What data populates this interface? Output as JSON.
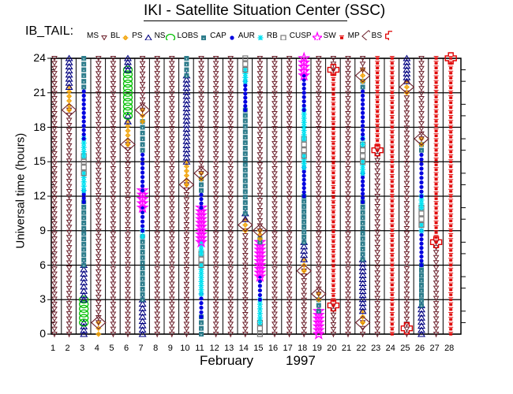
{
  "chart_data": {
    "type": "scatter",
    "title": "IKI - Satellite Situation Center (SSC)",
    "legend_title": "IB_TAIL:",
    "xlabel_month": "February",
    "xlabel_year": "1997",
    "ylabel": "Universal time (hours)",
    "xlim": [
      1,
      28
    ],
    "ylim": [
      0,
      24
    ],
    "grid": true,
    "yticks": [
      "0",
      "3",
      "6",
      "9",
      "12",
      "15",
      "18",
      "21",
      "24"
    ],
    "xticks": [
      "1",
      "2",
      "3",
      "4",
      "5",
      "6",
      "7",
      "8",
      "9",
      "10",
      "11",
      "12",
      "13",
      "14",
      "15",
      "16",
      "17",
      "18",
      "19",
      "20",
      "21",
      "22",
      "23",
      "24",
      "25",
      "26",
      "27",
      "28"
    ],
    "legend": [
      {
        "code": "MS",
        "symbol": "triangle-down",
        "color": "#6b1f2a"
      },
      {
        "code": "BL",
        "symbol": "sun",
        "color": "#f2a100"
      },
      {
        "code": "PS",
        "symbol": "triangle-up",
        "color": "#000080"
      },
      {
        "code": "NS",
        "symbol": "circle-open",
        "color": "#00c000"
      },
      {
        "code": "LOBS",
        "symbol": "square-filled",
        "color": "#2e7d8c"
      },
      {
        "code": "CAP",
        "symbol": "dot",
        "color": "#0000e0"
      },
      {
        "code": "AUR",
        "symbol": "asterisk",
        "color": "#00e0f0"
      },
      {
        "code": "RB",
        "symbol": "square-open",
        "color": "#777777"
      },
      {
        "code": "CUSP",
        "symbol": "star-open",
        "color": "#ff00ff"
      },
      {
        "code": "SW",
        "symbol": "burst",
        "color": "#e00000"
      },
      {
        "code": "MP",
        "symbol": "diamond-open",
        "color": "#6b1f2a"
      },
      {
        "code": "BS",
        "symbol": "cross-open",
        "color": "#e00000"
      }
    ],
    "days": [
      {
        "day": 1,
        "segments": [
          [
            "MS",
            0,
            24
          ]
        ],
        "markers": []
      },
      {
        "day": 2,
        "segments": [
          [
            "MS",
            0,
            19.5
          ],
          [
            "BL",
            19.5,
            21.5
          ],
          [
            "PS",
            21.5,
            24
          ]
        ],
        "markers": [
          [
            "MP",
            19.5
          ]
        ]
      },
      {
        "day": 3,
        "segments": [
          [
            "PS",
            0,
            1
          ],
          [
            "NS",
            1,
            3
          ],
          [
            "PS",
            3,
            6
          ],
          [
            "LOBS",
            6,
            11.5
          ],
          [
            "CAP",
            11.5,
            12.5
          ],
          [
            "AUR",
            12.5,
            14
          ],
          [
            "RB",
            14,
            15.5
          ],
          [
            "AUR",
            15.5,
            17
          ],
          [
            "CAP",
            17,
            21.5
          ],
          [
            "LOBS",
            21.5,
            24
          ]
        ],
        "markers": []
      },
      {
        "day": 4,
        "segments": [
          [
            "BL",
            0,
            1
          ],
          [
            "MS",
            1,
            24
          ]
        ],
        "markers": [
          [
            "MP",
            1
          ]
        ]
      },
      {
        "day": 5,
        "segments": [
          [
            "MS",
            0,
            24
          ]
        ],
        "markers": []
      },
      {
        "day": 6,
        "segments": [
          [
            "MS",
            0,
            16.5
          ],
          [
            "BL",
            16.5,
            18.5
          ],
          [
            "PS",
            18.5,
            19
          ],
          [
            "NS",
            19,
            23
          ],
          [
            "PS",
            23,
            24
          ]
        ],
        "markers": [
          [
            "MP",
            16.5
          ]
        ]
      },
      {
        "day": 7,
        "segments": [
          [
            "PS",
            0,
            3
          ],
          [
            "LOBS",
            3,
            8.5
          ],
          [
            "AUR",
            8.5,
            9
          ],
          [
            "CAP",
            9,
            11
          ],
          [
            "CUSP",
            11,
            12.5
          ],
          [
            "CAP",
            12.5,
            16
          ],
          [
            "LOBS",
            16,
            18.5
          ],
          [
            "BL",
            18.5,
            19.5
          ],
          [
            "MS",
            19.5,
            24
          ]
        ],
        "markers": [
          [
            "MP",
            19.5
          ]
        ]
      },
      {
        "day": 8,
        "segments": [
          [
            "MS",
            0,
            24
          ]
        ],
        "markers": []
      },
      {
        "day": 9,
        "segments": [
          [
            "MS",
            0,
            24
          ]
        ],
        "markers": []
      },
      {
        "day": 10,
        "segments": [
          [
            "MS",
            0,
            13
          ],
          [
            "BL",
            13,
            15
          ],
          [
            "PS",
            15,
            22.5
          ],
          [
            "LOBS",
            22.5,
            24
          ]
        ],
        "markers": [
          [
            "MP",
            13
          ]
        ]
      },
      {
        "day": 11,
        "segments": [
          [
            "LOBS",
            0,
            1.5
          ],
          [
            "CAP",
            1.5,
            3.5
          ],
          [
            "AUR",
            3.5,
            6
          ],
          [
            "RB",
            6,
            7
          ],
          [
            "AUR",
            7,
            8
          ],
          [
            "CUSP",
            8,
            11
          ],
          [
            "CAP",
            11,
            12.5
          ],
          [
            "LOBS",
            12.5,
            13.5
          ],
          [
            "BL",
            13.5,
            14
          ],
          [
            "MS",
            14,
            24
          ]
        ],
        "markers": [
          [
            "MP",
            14
          ]
        ]
      },
      {
        "day": 12,
        "segments": [
          [
            "MS",
            0,
            24
          ]
        ],
        "markers": []
      },
      {
        "day": 13,
        "segments": [
          [
            "MS",
            0,
            24
          ]
        ],
        "markers": []
      },
      {
        "day": 14,
        "segments": [
          [
            "MS",
            0,
            9
          ],
          [
            "BL",
            9,
            10
          ],
          [
            "PS",
            10,
            10.5
          ],
          [
            "LOBS",
            10.5,
            19.5
          ],
          [
            "CAP",
            19.5,
            22
          ],
          [
            "AUR",
            22,
            23
          ],
          [
            "RB",
            23,
            24
          ]
        ],
        "markers": [
          [
            "MP",
            9.5
          ]
        ]
      },
      {
        "day": 15,
        "segments": [
          [
            "RB",
            0,
            1
          ],
          [
            "AUR",
            1,
            3
          ],
          [
            "CAP",
            3,
            5
          ],
          [
            "CUSP",
            5,
            8
          ],
          [
            "LOBS",
            8,
            8.3
          ],
          [
            "BL",
            8.3,
            9
          ],
          [
            "MS",
            9,
            24
          ]
        ],
        "markers": [
          [
            "MP",
            9
          ]
        ]
      },
      {
        "day": 16,
        "segments": [
          [
            "MS",
            0,
            24
          ]
        ],
        "markers": []
      },
      {
        "day": 17,
        "segments": [
          [
            "MS",
            0,
            24
          ]
        ],
        "markers": []
      },
      {
        "day": 18,
        "segments": [
          [
            "MS",
            0,
            5.5
          ],
          [
            "BL",
            5.5,
            6.5
          ],
          [
            "PS",
            6.5,
            8
          ],
          [
            "LOBS",
            8,
            12
          ],
          [
            "CAP",
            12,
            14.5
          ],
          [
            "AUR",
            14.5,
            15.5
          ],
          [
            "RB",
            15.5,
            17
          ],
          [
            "AUR",
            17,
            19.5
          ],
          [
            "CAP",
            19.5,
            22.5
          ],
          [
            "CUSP",
            22.5,
            24
          ]
        ],
        "markers": [
          [
            "MP",
            5.5
          ]
        ]
      },
      {
        "day": 19,
        "segments": [
          [
            "CUSP",
            0,
            2
          ],
          [
            "LOBS",
            2,
            3
          ],
          [
            "BL",
            3,
            3.5
          ],
          [
            "MS",
            3.5,
            24
          ]
        ],
        "markers": [
          [
            "MP",
            3.5
          ]
        ]
      },
      {
        "day": 20,
        "segments": [
          [
            "MS",
            0,
            2.5
          ],
          [
            "SW",
            2.5,
            23
          ],
          [
            "MS",
            23,
            24
          ]
        ],
        "markers": [
          [
            "BS",
            2.5
          ],
          [
            "BS",
            23
          ]
        ]
      },
      {
        "day": 21,
        "segments": [
          [
            "MS",
            0,
            24
          ]
        ],
        "markers": []
      },
      {
        "day": 22,
        "segments": [
          [
            "MS",
            0,
            1
          ],
          [
            "BL",
            1,
            2
          ],
          [
            "PS",
            2,
            6.5
          ],
          [
            "LOBS",
            6.5,
            11.5
          ],
          [
            "CAP",
            11.5,
            14
          ],
          [
            "AUR",
            14,
            15
          ],
          [
            "RB",
            15,
            16.5
          ],
          [
            "AUR",
            16.5,
            17
          ],
          [
            "CAP",
            17,
            21.5
          ],
          [
            "LOBS",
            21.5,
            22
          ],
          [
            "BL",
            22,
            23
          ],
          [
            "MS",
            23,
            24
          ]
        ],
        "markers": [
          [
            "MP",
            1
          ],
          [
            "MP",
            22.5
          ]
        ]
      },
      {
        "day": 23,
        "segments": [
          [
            "MS",
            0,
            16
          ],
          [
            "SW",
            16,
            24
          ]
        ],
        "markers": [
          [
            "BS",
            16
          ]
        ]
      },
      {
        "day": 24,
        "segments": [
          [
            "SW",
            0,
            24
          ]
        ],
        "markers": []
      },
      {
        "day": 25,
        "segments": [
          [
            "MS",
            0,
            21
          ],
          [
            "BL",
            21,
            22
          ],
          [
            "PS",
            22,
            24
          ]
        ],
        "markers": [
          [
            "BS",
            0.5
          ],
          [
            "MP",
            21.5
          ]
        ]
      },
      {
        "day": 26,
        "segments": [
          [
            "PS",
            0,
            2.5
          ],
          [
            "LOBS",
            2.5,
            6
          ],
          [
            "CAP",
            6,
            9
          ],
          [
            "AUR",
            9,
            9.5
          ],
          [
            "RB",
            9.5,
            11
          ],
          [
            "AUR",
            11,
            12
          ],
          [
            "CAP",
            12,
            16
          ],
          [
            "LOBS",
            16,
            16.5
          ],
          [
            "BL",
            16.5,
            17
          ],
          [
            "MS",
            17,
            24
          ]
        ],
        "markers": [
          [
            "MP",
            17
          ]
        ]
      },
      {
        "day": 27,
        "segments": [
          [
            "MS",
            0,
            8
          ],
          [
            "SW",
            8,
            24
          ]
        ],
        "markers": [
          [
            "BS",
            8
          ]
        ]
      },
      {
        "day": 28,
        "segments": [
          [
            "SW",
            0,
            24
          ]
        ],
        "markers": [
          [
            "BS",
            24
          ]
        ]
      }
    ]
  }
}
